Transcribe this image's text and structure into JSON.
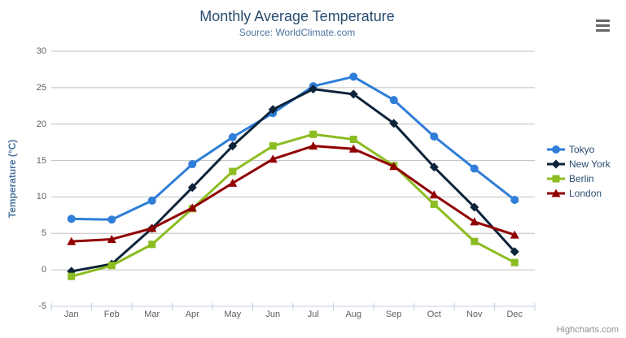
{
  "chart_data": {
    "type": "line",
    "title": "Monthly Average Temperature",
    "subtitle": "Source: WorldClimate.com",
    "xlabel": "",
    "ylabel": "Temperature (°C)",
    "categories": [
      "Jan",
      "Feb",
      "Mar",
      "Apr",
      "May",
      "Jun",
      "Jul",
      "Aug",
      "Sep",
      "Oct",
      "Nov",
      "Dec"
    ],
    "series": [
      {
        "name": "Tokyo",
        "color": "#2f7ed8",
        "marker": "circle",
        "values": [
          7.0,
          6.9,
          9.5,
          14.5,
          18.2,
          21.5,
          25.2,
          26.5,
          23.3,
          18.3,
          13.9,
          9.6
        ]
      },
      {
        "name": "New York",
        "color": "#0d233a",
        "marker": "diamond",
        "values": [
          -0.2,
          0.8,
          5.7,
          11.3,
          17.0,
          22.0,
          24.8,
          24.1,
          20.1,
          14.1,
          8.6,
          2.5
        ]
      },
      {
        "name": "Berlin",
        "color": "#8bbc21",
        "marker": "square",
        "values": [
          -0.9,
          0.6,
          3.5,
          8.4,
          13.5,
          17.0,
          18.6,
          17.9,
          14.3,
          9.0,
          3.9,
          1.0
        ]
      },
      {
        "name": "London",
        "color": "#910000",
        "marker": "triangle",
        "values": [
          3.9,
          4.2,
          5.7,
          8.5,
          11.9,
          15.2,
          17.0,
          16.6,
          14.2,
          10.3,
          6.6,
          4.8
        ]
      }
    ],
    "ylim": [
      -5,
      30
    ],
    "ytick_step": 5,
    "grid": true,
    "legend_position": "right"
  },
  "colors": {
    "background": "#FFFFFF",
    "title": "#274b6d",
    "subtitle": "#4d759e",
    "axis_title": "#4d759e",
    "tick_label": "#606060",
    "grid": "#C0C0C0",
    "axis_line": "#C0D0E0",
    "legend_text": "#274b6d",
    "credits": "#909090",
    "menu_icon": "#666666"
  },
  "icons": {
    "menu": "hamburger-menu-icon"
  },
  "credits": {
    "label": "Highcharts.com"
  }
}
